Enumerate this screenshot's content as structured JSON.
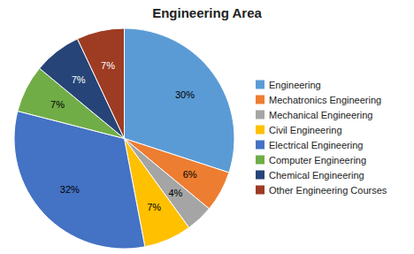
{
  "chart_data": {
    "type": "pie",
    "title": "Engineering Area",
    "categories": [
      "Engineering",
      "Mechatronics Engineering",
      "Mechanical Engineering",
      "Civil Engineering",
      "Electrical Engineering",
      "Computer Engineering",
      "Chemical Engineering",
      "Other Engineering Courses"
    ],
    "values": [
      30,
      6,
      4,
      7,
      32,
      7,
      7,
      7
    ],
    "value_labels": [
      "30%",
      "6%",
      "4%",
      "7%",
      "32%",
      "7%",
      "7%",
      "7%"
    ],
    "colors": [
      "#5B9BD5",
      "#ED7D31",
      "#A5A5A5",
      "#FFC000",
      "#4472C4",
      "#70AD47",
      "#264478",
      "#9E3B23"
    ],
    "data_labels": true,
    "legend": "right"
  }
}
